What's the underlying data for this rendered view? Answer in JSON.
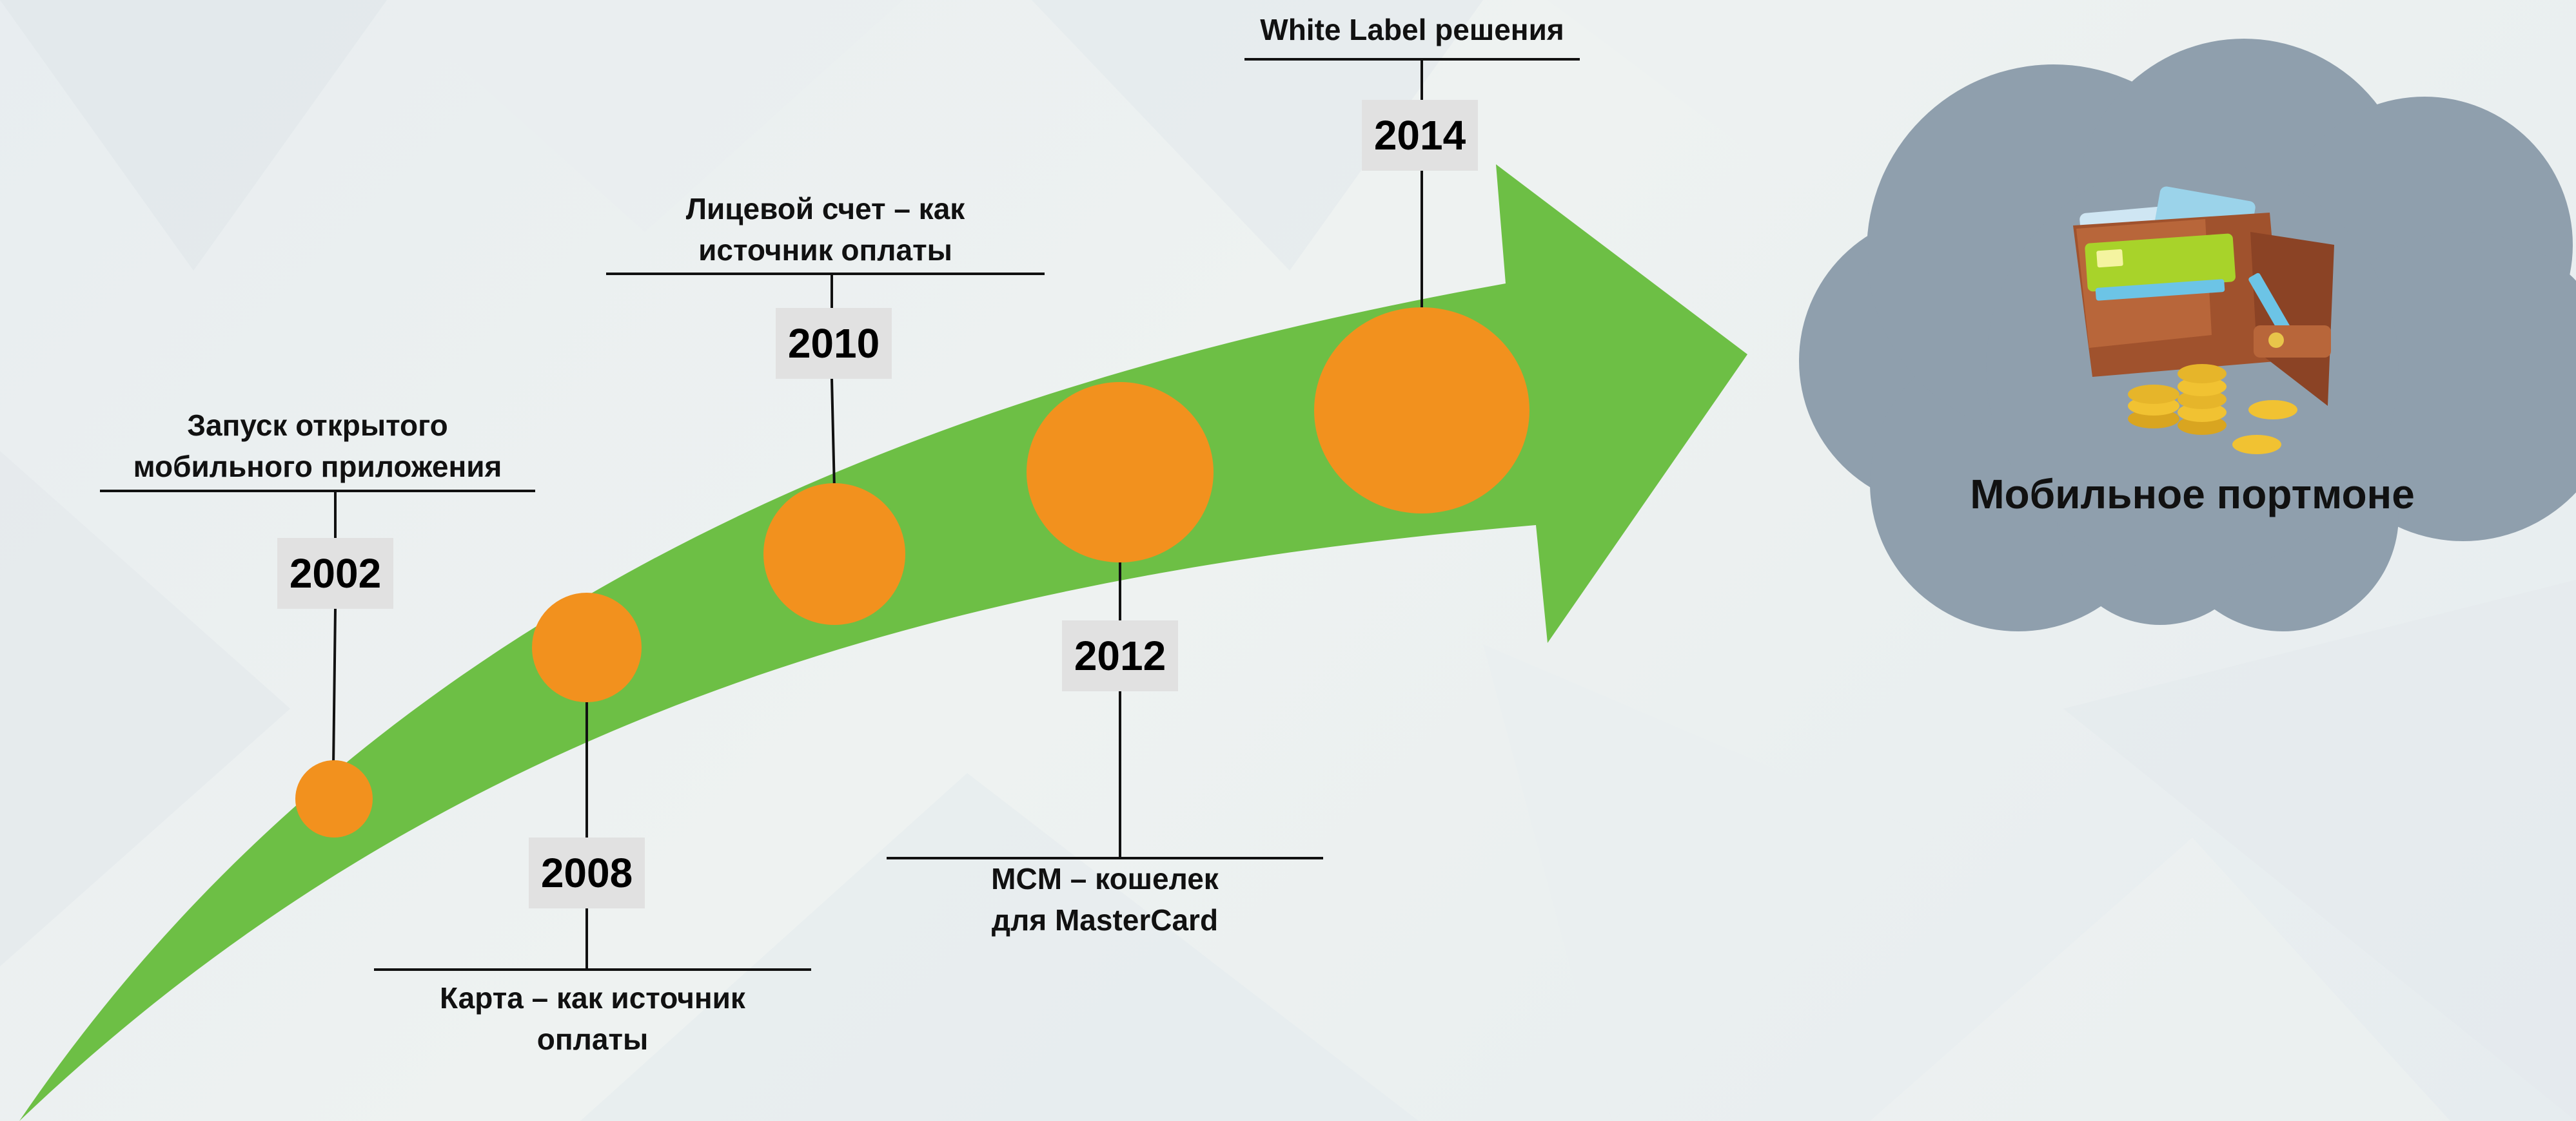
{
  "diagram": {
    "colors": {
      "arrow": "#6dbf45",
      "circle": "#f2911e",
      "cloud": "#8f9fad",
      "year_box": "#e1e1e1",
      "connector": "#111111"
    },
    "milestones": [
      {
        "year": "2002",
        "label_line1": "Запуск открытого",
        "label_line2": "мобильного приложения"
      },
      {
        "year": "2008",
        "label_line1": "Карта – как источник",
        "label_line2": "оплаты"
      },
      {
        "year": "2010",
        "label_line1": "Лицевой счет – как",
        "label_line2": "источник оплаты"
      },
      {
        "year": "2012",
        "label_line1": "MCM – кошелек",
        "label_line2": "для MasterCard"
      },
      {
        "year": "2014",
        "label_line1": "White Label решения",
        "label_line2": ""
      }
    ],
    "cloud": {
      "title": "Мобильное портмоне",
      "icon": "wallet-with-coins-icon"
    }
  }
}
